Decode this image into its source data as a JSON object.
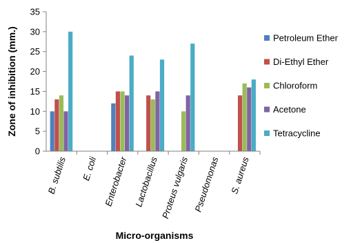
{
  "chart_data": {
    "type": "bar",
    "title": "",
    "xlabel": "Micro-organisms",
    "ylabel": "Zone of inhibition (mm.)",
    "ylim": [
      0,
      35
    ],
    "yticks": [
      0,
      5,
      10,
      15,
      20,
      25,
      30,
      35
    ],
    "grid": false,
    "legend_position": "right",
    "categories": [
      "B. subtilis",
      "E. coli",
      "Enterobacter",
      "Lactobacillus",
      "Proteus vulgaris",
      "Pseudomonas",
      "S. aureus"
    ],
    "series": [
      {
        "name": "Petroleum Ether",
        "color": "#4F81BD",
        "values": [
          10,
          0,
          12,
          0,
          0,
          0,
          0
        ]
      },
      {
        "name": "Di-Ethyl Ether",
        "color": "#C0504D",
        "values": [
          13,
          0,
          15,
          14,
          0,
          0,
          14
        ]
      },
      {
        "name": "Chloroform",
        "color": "#9BBB59",
        "values": [
          14,
          0,
          15,
          13,
          10,
          0,
          17
        ]
      },
      {
        "name": "  Acetone",
        "color": "#8064A2",
        "values": [
          10,
          0,
          14,
          15,
          14,
          0,
          16
        ]
      },
      {
        "name": "Tetracycline",
        "color": "#4BACC6",
        "values": [
          30,
          0,
          24,
          23,
          27,
          0,
          18
        ]
      }
    ]
  }
}
